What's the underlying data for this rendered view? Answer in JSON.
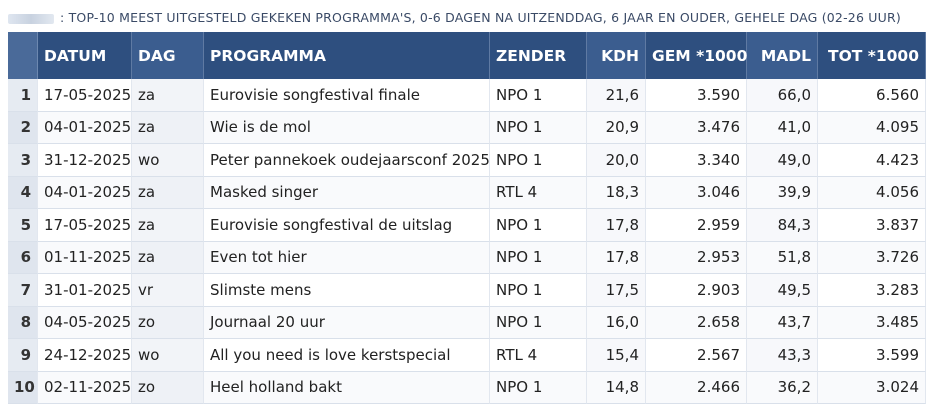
{
  "caption": ": TOP-10 MEEST UITGESTELD GEKEKEN PROGRAMMA'S, 0-6 DAGEN NA UITZENDDAG, 6 JAAR EN OUDER, GEHELE DAG (02-26 UUR)",
  "headers": [
    "",
    "DATUM",
    "DAG",
    "PROGRAMMA",
    "ZENDER",
    "KDH",
    "GEM *1000",
    "MADL",
    "TOT *1000"
  ],
  "rows": [
    [
      "1",
      "17-05-2025",
      "za",
      "Eurovisie songfestival finale",
      "NPO 1",
      "21,6",
      "3.590",
      "66,0",
      "6.560"
    ],
    [
      "2",
      "04-01-2025",
      "za",
      "Wie is de mol",
      "NPO 1",
      "20,9",
      "3.476",
      "41,0",
      "4.095"
    ],
    [
      "3",
      "31-12-2025",
      "wo",
      "Peter pannekoek oudejaarsconf 2025",
      "NPO 1",
      "20,0",
      "3.340",
      "49,0",
      "4.423"
    ],
    [
      "4",
      "04-01-2025",
      "za",
      "Masked singer",
      "RTL 4",
      "18,3",
      "3.046",
      "39,9",
      "4.056"
    ],
    [
      "5",
      "17-05-2025",
      "za",
      "Eurovisie songfestival de uitslag",
      "NPO 1",
      "17,8",
      "2.959",
      "84,3",
      "3.837"
    ],
    [
      "6",
      "01-11-2025",
      "za",
      "Even tot hier",
      "NPO 1",
      "17,8",
      "2.953",
      "51,8",
      "3.726"
    ],
    [
      "7",
      "31-01-2025",
      "vr",
      "Slimste mens",
      "NPO 1",
      "17,5",
      "2.903",
      "49,5",
      "3.283"
    ],
    [
      "8",
      "04-05-2025",
      "zo",
      "Journaal 20 uur",
      "NPO 1",
      "16,0",
      "2.658",
      "43,7",
      "3.485"
    ],
    [
      "9",
      "24-12-2025",
      "wo",
      "All you need is love kerstspecial",
      "RTL 4",
      "15,4",
      "2.567",
      "43,3",
      "3.599"
    ],
    [
      "10",
      "02-11-2025",
      "zo",
      "Heel holland bakt",
      "NPO 1",
      "14,8",
      "2.466",
      "36,2",
      "3.024"
    ]
  ]
}
